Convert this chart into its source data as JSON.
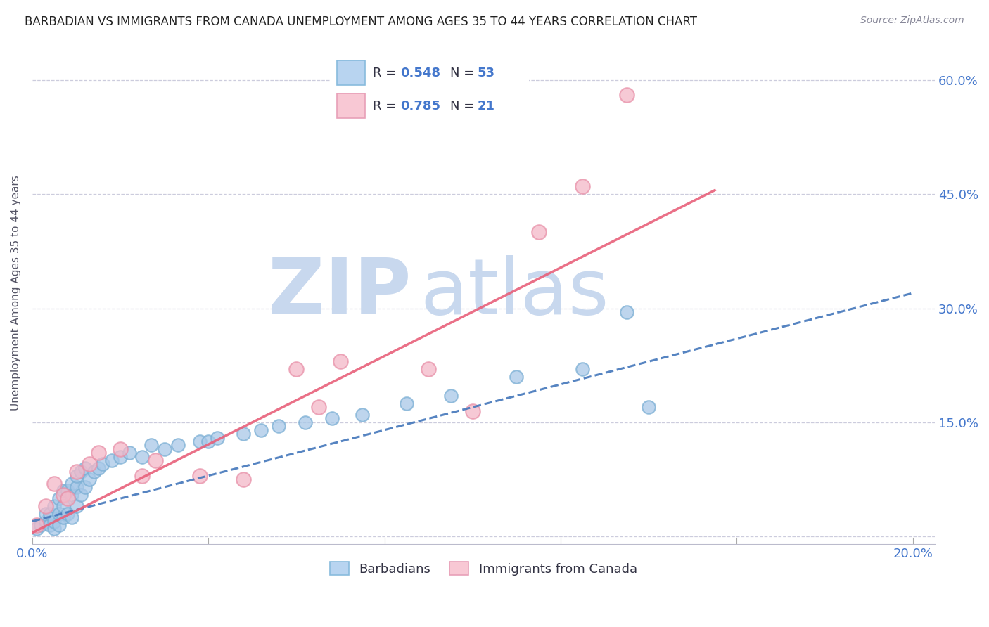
{
  "title": "BARBADIAN VS IMMIGRANTS FROM CANADA UNEMPLOYMENT AMONG AGES 35 TO 44 YEARS CORRELATION CHART",
  "source": "Source: ZipAtlas.com",
  "ylabel": "Unemployment Among Ages 35 to 44 years",
  "xlim": [
    0.0,
    0.205
  ],
  "ylim": [
    -0.01,
    0.65
  ],
  "xticks": [
    0.0,
    0.04,
    0.08,
    0.12,
    0.16,
    0.2
  ],
  "xtick_labels": [
    "0.0%",
    "",
    "",
    "",
    "",
    "20.0%"
  ],
  "ytick_positions": [
    0.0,
    0.15,
    0.3,
    0.45,
    0.6
  ],
  "ytick_labels": [
    "",
    "15.0%",
    "30.0%",
    "45.0%",
    "60.0%"
  ],
  "blue_color": "#a8c8e8",
  "pink_color": "#f4b8c8",
  "blue_edge_color": "#7bafd4",
  "pink_edge_color": "#e890a8",
  "blue_line_color": "#4477bb",
  "pink_line_color": "#e8607a",
  "axis_label_color": "#4477cc",
  "grid_color": "#ccccdd",
  "watermark_zip_color": "#c8d8ee",
  "watermark_atlas_color": "#c8d8ee",
  "blue_scatter_x": [
    0.001,
    0.002,
    0.003,
    0.003,
    0.004,
    0.004,
    0.005,
    0.005,
    0.005,
    0.006,
    0.006,
    0.006,
    0.007,
    0.007,
    0.007,
    0.008,
    0.008,
    0.009,
    0.009,
    0.009,
    0.01,
    0.01,
    0.01,
    0.011,
    0.011,
    0.012,
    0.012,
    0.013,
    0.014,
    0.015,
    0.016,
    0.018,
    0.02,
    0.022,
    0.025,
    0.027,
    0.03,
    0.033,
    0.038,
    0.04,
    0.042,
    0.048,
    0.052,
    0.056,
    0.062,
    0.068,
    0.075,
    0.085,
    0.095,
    0.11,
    0.125,
    0.135,
    0.14
  ],
  "blue_scatter_y": [
    0.01,
    0.015,
    0.02,
    0.03,
    0.015,
    0.03,
    0.01,
    0.02,
    0.04,
    0.015,
    0.03,
    0.05,
    0.025,
    0.04,
    0.06,
    0.03,
    0.06,
    0.025,
    0.055,
    0.07,
    0.04,
    0.065,
    0.08,
    0.055,
    0.085,
    0.065,
    0.09,
    0.075,
    0.085,
    0.09,
    0.095,
    0.1,
    0.105,
    0.11,
    0.105,
    0.12,
    0.115,
    0.12,
    0.125,
    0.125,
    0.13,
    0.135,
    0.14,
    0.145,
    0.15,
    0.155,
    0.16,
    0.175,
    0.185,
    0.21,
    0.22,
    0.295,
    0.17
  ],
  "pink_scatter_x": [
    0.001,
    0.003,
    0.005,
    0.007,
    0.008,
    0.01,
    0.013,
    0.015,
    0.02,
    0.025,
    0.028,
    0.038,
    0.048,
    0.06,
    0.065,
    0.07,
    0.09,
    0.1,
    0.115,
    0.125,
    0.135
  ],
  "pink_scatter_y": [
    0.015,
    0.04,
    0.07,
    0.055,
    0.05,
    0.085,
    0.095,
    0.11,
    0.115,
    0.08,
    0.1,
    0.08,
    0.075,
    0.22,
    0.17,
    0.23,
    0.22,
    0.165,
    0.4,
    0.46,
    0.58
  ],
  "blue_line_x": [
    0.0,
    0.2
  ],
  "blue_line_y": [
    0.02,
    0.32
  ],
  "pink_line_x": [
    0.0,
    0.155
  ],
  "pink_line_y": [
    0.005,
    0.455
  ],
  "legend_items": [
    {
      "label": "R = 0.548  N = 53",
      "facecolor": "#b8d4f0",
      "edgecolor": "#88bbdd"
    },
    {
      "label": "R = 0.785  N = 21",
      "facecolor": "#f8c8d4",
      "edgecolor": "#e8a0b8"
    }
  ],
  "bottom_legend": [
    {
      "label": "Barbadians",
      "facecolor": "#b8d4f0",
      "edgecolor": "#88bbdd"
    },
    {
      "label": "Immigrants from Canada",
      "facecolor": "#f8c8d4",
      "edgecolor": "#e8a0b8"
    }
  ]
}
